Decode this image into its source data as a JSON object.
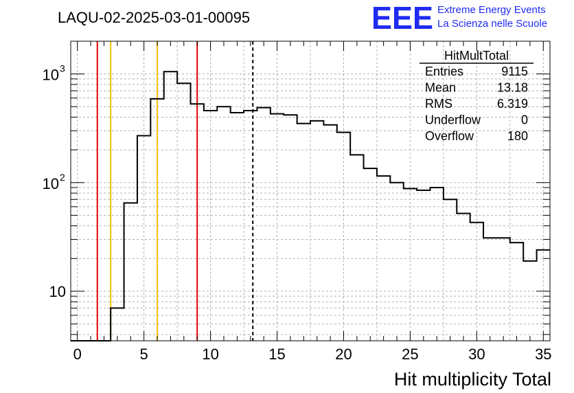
{
  "title": "LAQU-02-2025-03-01-00095",
  "logo": {
    "mark": "EEE",
    "line1": "Extreme Energy Events",
    "line2": "La Scienza nelle Scuole",
    "color": "#1f2bf0"
  },
  "stats": {
    "name": "HitMultTotal",
    "rows": [
      {
        "label": "Entries",
        "value": "9115"
      },
      {
        "label": "Mean",
        "value": "13.18"
      },
      {
        "label": "RMS",
        "value": "6.319"
      },
      {
        "label": "Underflow",
        "value": "0"
      },
      {
        "label": "Overflow",
        "value": "180"
      }
    ]
  },
  "chart_data": {
    "type": "step-histogram",
    "title": "LAQU-02-2025-03-01-00095",
    "xlabel": "Hit multiplicity Total",
    "ylabel": "",
    "xlim": [
      -0.5,
      35.5
    ],
    "ylim": [
      3.5,
      2000
    ],
    "yscale": "log",
    "grid": true,
    "x_ticks": [
      "0",
      "5",
      "10",
      "15",
      "20",
      "25",
      "30",
      "35"
    ],
    "y_ticks": [
      {
        "value": 10,
        "label": "10"
      },
      {
        "value": 100,
        "label": "10",
        "exponent": "2"
      },
      {
        "value": 1000,
        "label": "10",
        "exponent": "3"
      }
    ],
    "bin_width": 1,
    "bin_edges_start": -0.5,
    "values": [
      0,
      0,
      0,
      7,
      65,
      270,
      590,
      1050,
      820,
      530,
      460,
      500,
      440,
      460,
      490,
      430,
      420,
      350,
      370,
      340,
      290,
      180,
      135,
      115,
      100,
      88,
      85,
      90,
      70,
      52,
      43,
      31,
      31,
      28,
      19,
      24
    ],
    "line_color": "#000000",
    "vertical_lines": [
      {
        "x": 1.5,
        "color": "#e00000",
        "style": "solid"
      },
      {
        "x": 2.5,
        "color": "#f0c000",
        "style": "solid"
      },
      {
        "x": 6.0,
        "color": "#f0c000",
        "style": "solid"
      },
      {
        "x": 9.0,
        "color": "#e00000",
        "style": "solid"
      },
      {
        "x": 13.18,
        "color": "#000000",
        "style": "dashed"
      }
    ]
  }
}
